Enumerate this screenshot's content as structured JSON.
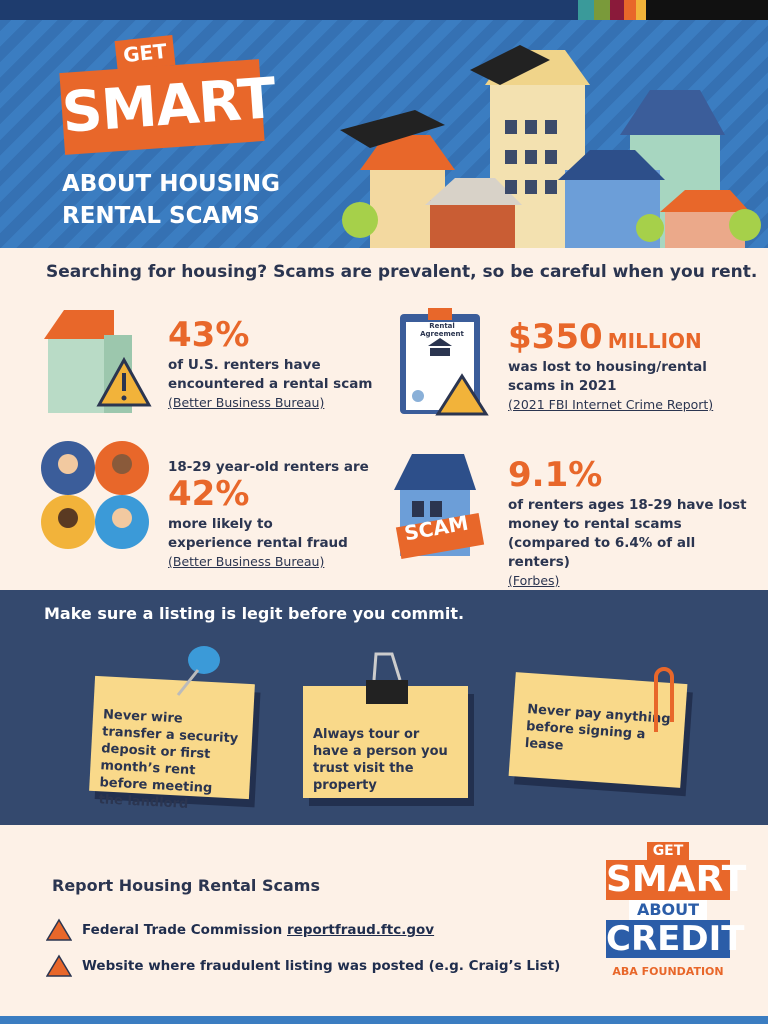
{
  "header": {
    "badge_top": "GET",
    "badge_main": "SMART",
    "subtitle_lines": [
      "ABOUT HOUSING",
      "RENTAL SCAMS"
    ]
  },
  "intro": "Searching for housing? Scams are prevalent, so be careful when you rent.",
  "stats": [
    {
      "value": "43%",
      "text": "of U.S. renters have encountered a rental scam",
      "source": "(Better Business Bureau)"
    },
    {
      "value": "$350",
      "unit": "MILLION",
      "text": "was lost to housing/rental scams in 2021",
      "source": "(2021 FBI Internet Crime Report)",
      "icon_label": "Rental Agreement"
    },
    {
      "lead": "18-29 year-old renters are",
      "value": "42%",
      "text": "more likely to experience rental fraud",
      "source": "(Better Business Bureau)"
    },
    {
      "value": "9.1%",
      "text": "of renters ages 18-29 have lost money to rental scams (compared to 6.4% of all renters)",
      "source": "(Forbes)",
      "icon_label": "SCAM"
    }
  ],
  "tips": {
    "title": "Make sure a listing is legit before you commit.",
    "notes": [
      "Never wire transfer a security deposit or first month’s rent before meeting the landlord",
      "Always tour or have a person you trust visit the property",
      "Never pay anything before signing a lease"
    ]
  },
  "report": {
    "title": "Report Housing Rental Scams",
    "items": [
      {
        "text": "Federal Trade Commission",
        "link": "reportfraud.ftc.gov"
      },
      {
        "text": "Website where fraudulent listing was posted (e.g. Craig’s List)"
      }
    ]
  },
  "logo": {
    "lines": [
      "GET",
      "SMART",
      "ABOUT",
      "CREDIT"
    ],
    "org": "ABA FOUNDATION"
  }
}
